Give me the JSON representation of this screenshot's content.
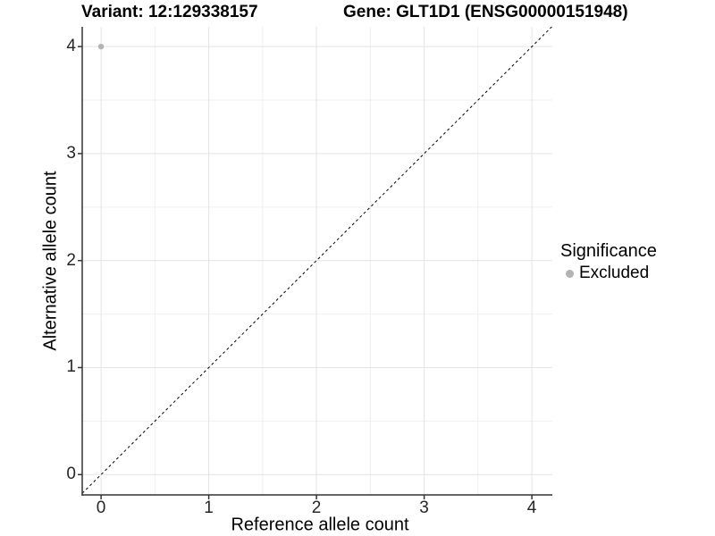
{
  "header": {
    "title_left": "Variant: 12:129338157",
    "title_right": "Gene: GLT1D1 (ENSG00000151948)"
  },
  "legend": {
    "title": "Significance",
    "items": [
      {
        "label": "Excluded",
        "color": "#b3b3b3"
      }
    ]
  },
  "chart_data": {
    "type": "scatter",
    "title_left": "Variant: 12:129338157",
    "title_right": "Gene: GLT1D1 (ENSG00000151948)",
    "xlabel": "Reference allele count",
    "ylabel": "Alternative allele count",
    "xlim": [
      -0.175,
      4.19
    ],
    "ylim": [
      -0.19,
      4.185
    ],
    "x_ticks": [
      0,
      1,
      2,
      3,
      4
    ],
    "y_ticks": [
      0,
      1,
      2,
      3,
      4
    ],
    "grid": "on",
    "minor_gridlines": true,
    "legend_position": "right",
    "legend_title": "Significance",
    "series": [
      {
        "name": "Excluded",
        "color": "#b3b3b3",
        "points": [
          {
            "x": 0,
            "y": 4
          }
        ]
      }
    ],
    "reference_line": {
      "type": "identity",
      "slope": 1,
      "intercept": 0,
      "style": "dashed",
      "color": "#000000"
    }
  },
  "style": {
    "major_grid_color": "#e4e4e4",
    "minor_grid_color": "#efefef",
    "axis_line_color": "#333333",
    "tick_color": "#333333",
    "point_radius": 3.2,
    "background": "#ffffff"
  }
}
